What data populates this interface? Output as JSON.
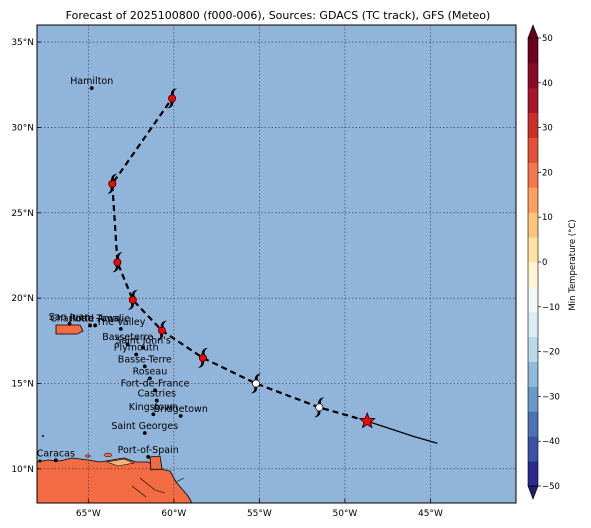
{
  "title": "Forecast of 2025100800 (f000-006), Sources: GDACS (TC track), GFS (Meteo)",
  "map": {
    "lon_range": [
      -68,
      -40
    ],
    "lat_range": [
      8,
      36
    ],
    "x_ticks": [
      {
        "lon": -65,
        "label": "65°W"
      },
      {
        "lon": -60,
        "label": "60°W"
      },
      {
        "lon": -55,
        "label": "55°W"
      },
      {
        "lon": -50,
        "label": "50°W"
      },
      {
        "lon": -45,
        "label": "45°W"
      }
    ],
    "y_ticks": [
      {
        "lat": 10,
        "label": "10°N"
      },
      {
        "lat": 15,
        "label": "15°N"
      },
      {
        "lat": 20,
        "label": "20°N"
      },
      {
        "lat": 25,
        "label": "25°N"
      },
      {
        "lat": 30,
        "label": "30°N"
      },
      {
        "lat": 35,
        "label": "35°N"
      }
    ],
    "ocean_color": "#91b4da",
    "land_color": "#f26b43",
    "grid": "dotted"
  },
  "cities": [
    {
      "name": "Hamilton",
      "lon": -64.8,
      "lat": 32.3
    },
    {
      "name": "San Juan",
      "lon": -66.1,
      "lat": 18.5
    },
    {
      "name": "Charlotte Amalie",
      "lon": -64.9,
      "lat": 18.4
    },
    {
      "name": "Road Town",
      "lon": -64.6,
      "lat": 18.4
    },
    {
      "name": "The Valley",
      "lon": -63.1,
      "lat": 18.2
    },
    {
      "name": "Basseterre",
      "lon": -62.7,
      "lat": 17.3
    },
    {
      "name": "Saint John's",
      "lon": -61.8,
      "lat": 17.1
    },
    {
      "name": "Plymouth",
      "lon": -62.2,
      "lat": 16.7
    },
    {
      "name": "Basse-Terre",
      "lon": -61.7,
      "lat": 16.0
    },
    {
      "name": "Roseau",
      "lon": -61.4,
      "lat": 15.3
    },
    {
      "name": "Fort-de-France",
      "lon": -61.1,
      "lat": 14.6
    },
    {
      "name": "Castries",
      "lon": -61.0,
      "lat": 14.0
    },
    {
      "name": "Kingstown",
      "lon": -61.2,
      "lat": 13.2
    },
    {
      "name": "Bridgetown",
      "lon": -59.6,
      "lat": 13.1
    },
    {
      "name": "Saint Georges",
      "lon": -61.7,
      "lat": 12.1
    },
    {
      "name": "Port-of-Spain",
      "lon": -61.5,
      "lat": 10.7
    },
    {
      "name": "Caracas",
      "lon": -66.9,
      "lat": 10.5
    }
  ],
  "track": {
    "current_position": {
      "lon": -48.7,
      "lat": 12.8
    },
    "past": [
      [
        -44.6,
        11.5
      ],
      [
        -46,
        11.9
      ],
      [
        -47.5,
        12.4
      ],
      [
        -48.7,
        12.8
      ]
    ],
    "forecast": [
      [
        -48.7,
        12.8
      ],
      [
        -51.5,
        13.6
      ],
      [
        -55.2,
        15.0
      ],
      [
        -58.3,
        16.5
      ],
      [
        -60.7,
        18.1
      ],
      [
        -62.4,
        19.9
      ],
      [
        -63.3,
        22.1
      ],
      [
        -63.6,
        26.7
      ],
      [
        -60.1,
        31.7
      ]
    ],
    "symbols": [
      {
        "lon": -51.5,
        "lat": 13.6,
        "color": "#ffffff"
      },
      {
        "lon": -55.2,
        "lat": 15.0,
        "color": "#ffffff"
      },
      {
        "lon": -58.3,
        "lat": 16.5,
        "color": "#ff0000"
      },
      {
        "lon": -60.7,
        "lat": 18.1,
        "color": "#ff0000"
      },
      {
        "lon": -62.4,
        "lat": 19.9,
        "color": "#ff0000"
      },
      {
        "lon": -63.3,
        "lat": 22.1,
        "color": "#ff0000"
      },
      {
        "lon": -63.6,
        "lat": 26.7,
        "color": "#ff0000"
      },
      {
        "lon": -60.1,
        "lat": 31.7,
        "color": "#ff0000"
      }
    ],
    "marker_color": "#ff0000"
  },
  "colorbar": {
    "label": "Min Temperature (°C)",
    "min": -50,
    "max": 50,
    "step": 5,
    "ticks": [
      50,
      40,
      30,
      20,
      10,
      0,
      -10,
      -20,
      -30,
      -40,
      -50
    ],
    "colors": [
      "#2b2a8f",
      "#3c51a3",
      "#4a73b4",
      "#6a98c8",
      "#90bbd8",
      "#b7d9e8",
      "#d9eef4",
      "#f0f8f8",
      "#fdf6d0",
      "#fee4a0",
      "#fdc57c",
      "#fca05f",
      "#f5764a",
      "#e3503a",
      "#cb2f2a",
      "#a81627",
      "#8a0a24",
      "#6b0020"
    ],
    "extend_low": "#241c6e",
    "extend_high": "#67001f"
  }
}
